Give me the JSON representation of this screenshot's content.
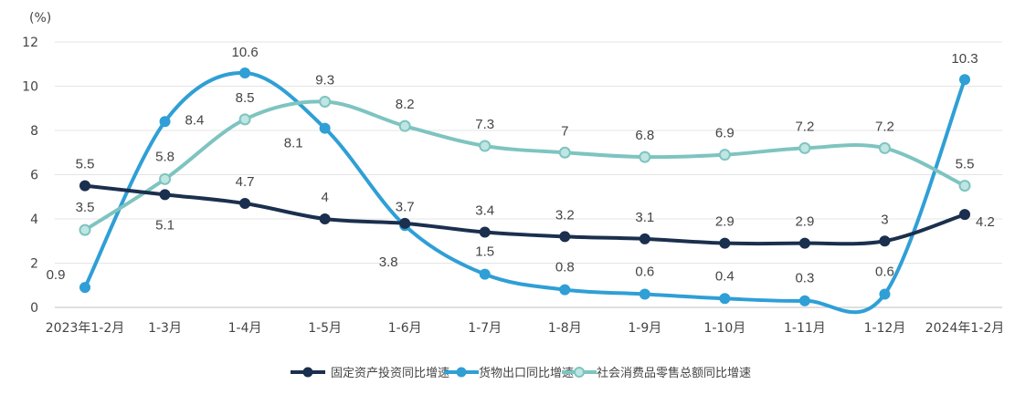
{
  "chart_data": {
    "type": "line",
    "unit_label": "(%)",
    "categories": [
      "2023年1-2月",
      "1-3月",
      "1-4月",
      "1-5月",
      "1-6月",
      "1-7月",
      "1-8月",
      "1-9月",
      "1-10月",
      "1-11月",
      "1-12月",
      "2024年1-2月"
    ],
    "ylim": [
      0,
      12
    ],
    "yticks": [
      0,
      2,
      4,
      6,
      8,
      10,
      12
    ],
    "grid": true,
    "legend_position": "bottom-center",
    "series": [
      {
        "name": "固定资产投资同比增速",
        "color": "#1b2f4e",
        "values": [
          5.5,
          5.1,
          4.7,
          4.0,
          3.8,
          3.4,
          3.2,
          3.1,
          2.9,
          2.9,
          3.0,
          4.2
        ],
        "labels": [
          "5.5",
          "5.1",
          "4.7",
          "4",
          "3.8",
          "3.4",
          "3.2",
          "3.1",
          "2.9",
          "2.9",
          "3",
          "4.2"
        ]
      },
      {
        "name": "货物出口同比增速",
        "color": "#2f9fd6",
        "values": [
          0.9,
          8.4,
          10.6,
          8.1,
          3.7,
          1.5,
          0.8,
          0.6,
          0.4,
          0.3,
          0.6,
          10.3
        ],
        "labels": [
          "0.9",
          "8.4",
          "10.6",
          "8.1",
          "3.7",
          "1.5",
          "0.8",
          "0.6",
          "0.4",
          "0.3",
          "0.6",
          "10.3"
        ]
      },
      {
        "name": "社会消费品零售总额同比增速",
        "color": "#7ec4c0",
        "values": [
          3.5,
          5.8,
          8.5,
          9.3,
          8.2,
          7.3,
          7.0,
          6.8,
          6.9,
          7.2,
          7.2,
          5.5
        ],
        "labels": [
          "3.5",
          "5.8",
          "8.5",
          "9.3",
          "8.2",
          "7.3",
          "7",
          "6.8",
          "6.9",
          "7.2",
          "7.2",
          "5.5"
        ]
      }
    ]
  }
}
